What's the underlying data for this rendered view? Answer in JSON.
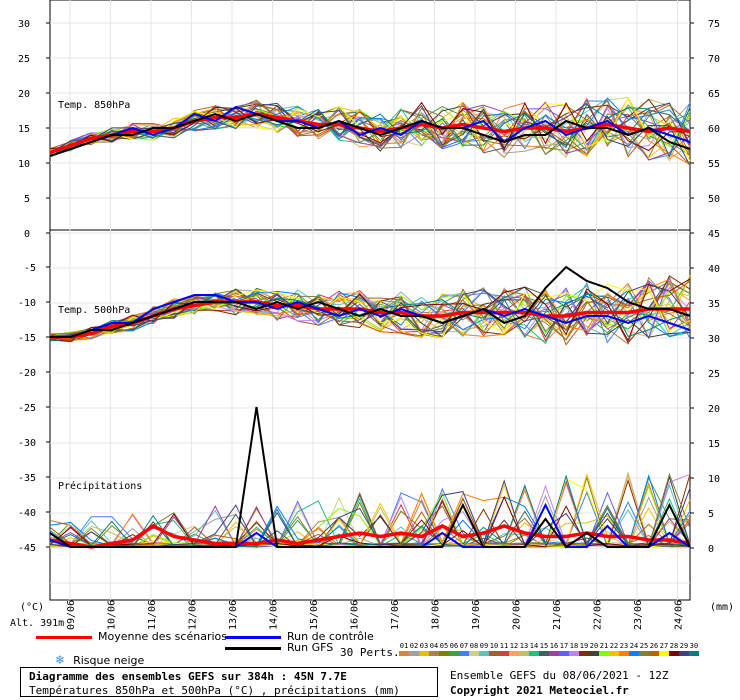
{
  "chart_data": {
    "type": "line",
    "title": "Diagramme des ensembles GEFS sur 384h : 45N 7.7E",
    "subtitle": "Températures 850hPa et 500hPa (°C) , précipitations (mm)",
    "x_dates": [
      "09/06",
      "10/06",
      "11/06",
      "12/06",
      "13/06",
      "14/06",
      "15/06",
      "16/06",
      "17/06",
      "18/06",
      "19/06",
      "20/06",
      "21/06",
      "22/06",
      "23/06",
      "24/06"
    ],
    "left_axis_unit": "(°C)",
    "right_axis_unit": "(mm)",
    "altitude_label": "Alt. 391m",
    "panels": [
      {
        "label": "Temp. 850hPa",
        "left_ticks": [
          "30",
          "25",
          "20",
          "15",
          "10",
          "5",
          "0"
        ],
        "right_ticks": [
          "75",
          "70",
          "65",
          "60",
          "55",
          "50"
        ],
        "ylim": [
          0,
          30
        ]
      },
      {
        "label": "Temp. 500hPa",
        "left_ticks": [
          "-5",
          "-10",
          "-15",
          "-20",
          "-25",
          "-30",
          "-35",
          "-40",
          "-45"
        ],
        "right_ticks": [
          "45",
          "40",
          "35",
          "30",
          "25",
          "20",
          "15",
          "10",
          "5",
          "0"
        ],
        "ylim": [
          -50,
          0
        ]
      },
      {
        "label": "Précipitations",
        "right_ticks": [
          "20",
          "15",
          "10",
          "5",
          "0"
        ],
        "ylim": [
          0,
          20
        ]
      }
    ],
    "series": [
      {
        "name": "Moyenne des scénarios",
        "color": "#ff0000",
        "t850": [
          11.5,
          12.5,
          13.5,
          14,
          14.5,
          14.5,
          15,
          16,
          16.5,
          16.5,
          17,
          16.5,
          16,
          15.5,
          15.5,
          15,
          14.5,
          15,
          15.5,
          15,
          15.5,
          15,
          14.5,
          15,
          15,
          14.5,
          15,
          15.5,
          15,
          14.5,
          15,
          14.5
        ],
        "t500": [
          -15,
          -15,
          -14.5,
          -13.5,
          -13,
          -12,
          -11,
          -10.5,
          -10,
          -10,
          -10,
          -10.5,
          -10.5,
          -11,
          -11,
          -11,
          -11.5,
          -11.5,
          -12,
          -12,
          -11.5,
          -11.5,
          -11.5,
          -11.5,
          -12,
          -12,
          -11.5,
          -11.5,
          -11.5,
          -11,
          -11,
          -11
        ],
        "precip": [
          1,
          0.5,
          0,
          0.5,
          1,
          3,
          1.5,
          1,
          0.5,
          0.5,
          0.5,
          1,
          0.5,
          1,
          1.5,
          2,
          1.5,
          2,
          1.5,
          3,
          1.5,
          2,
          3,
          2,
          1.5,
          1.5,
          2,
          1.5,
          1.5,
          1,
          1,
          0.5
        ]
      },
      {
        "name": "Run de contrôle",
        "color": "#0000ff",
        "t850": [
          11,
          12,
          13,
          14,
          15,
          14,
          15,
          17,
          16,
          18,
          17,
          16,
          16,
          15,
          16,
          14,
          15,
          14,
          16,
          15,
          15,
          16,
          13,
          15,
          16,
          14,
          15,
          16,
          14,
          15,
          14,
          13
        ],
        "t500": [
          -15,
          -15,
          -14,
          -13,
          -13,
          -11,
          -10,
          -9,
          -9,
          -10,
          -10,
          -11,
          -10,
          -11,
          -12,
          -11,
          -12,
          -11,
          -12,
          -13,
          -12,
          -11,
          -12,
          -11,
          -12,
          -13,
          -12,
          -12,
          -13,
          -12,
          -13,
          -14
        ],
        "precip": [
          1,
          0,
          0,
          0,
          0,
          0,
          0,
          0,
          0,
          0,
          2,
          0,
          0,
          0,
          0,
          0,
          0,
          0,
          0,
          2,
          0,
          0,
          0,
          0,
          6,
          0,
          0,
          3,
          0,
          0,
          2,
          0
        ]
      },
      {
        "name": "Run GFS",
        "color": "#000000",
        "t850": [
          11,
          12,
          13,
          14,
          14,
          15,
          15,
          16,
          17,
          16,
          17,
          16,
          15,
          15,
          16,
          15,
          14,
          15,
          16,
          15,
          15,
          14,
          13,
          14,
          14,
          16,
          15,
          15,
          14,
          15,
          13,
          12
        ],
        "t500": [
          -15,
          -15,
          -14,
          -14,
          -13,
          -12,
          -11,
          -10,
          -10,
          -10,
          -11,
          -10,
          -11,
          -10,
          -11,
          -12,
          -11,
          -12,
          -12,
          -13,
          -12,
          -11,
          -13,
          -12,
          -8,
          -5,
          -7,
          -8,
          -10,
          -11,
          -11,
          -12
        ],
        "precip": [
          2,
          0,
          0,
          0,
          0,
          0,
          0,
          0,
          0,
          0,
          20,
          0,
          0,
          0,
          0,
          0,
          0,
          0,
          0,
          0,
          6,
          0,
          0,
          0,
          4,
          0,
          2,
          0,
          0,
          0,
          6,
          0
        ]
      }
    ],
    "legend": {
      "mean": "Moyenne des scénarios",
      "control": "Run de contrôle",
      "gfs": "Run GFS",
      "snow": "Risque neige",
      "perts_label": "30 Perts."
    },
    "perturbations": [
      {
        "id": "01",
        "color": "#e08040"
      },
      {
        "id": "02",
        "color": "#a0a0a0"
      },
      {
        "id": "03",
        "color": "#e0c000"
      },
      {
        "id": "04",
        "color": "#b08050"
      },
      {
        "id": "05",
        "color": "#808000"
      },
      {
        "id": "06",
        "color": "#40a040"
      },
      {
        "id": "07",
        "color": "#4080ff"
      },
      {
        "id": "08",
        "color": "#d0d080"
      },
      {
        "id": "09",
        "color": "#60c0c0"
      },
      {
        "id": "10",
        "color": "#a06030"
      },
      {
        "id": "11",
        "color": "#d04040"
      },
      {
        "id": "12",
        "color": "#ffa060"
      },
      {
        "id": "13",
        "color": "#c0c060"
      },
      {
        "id": "14",
        "color": "#20c080"
      },
      {
        "id": "15",
        "color": "#406060"
      },
      {
        "id": "16",
        "color": "#a040a0"
      },
      {
        "id": "17",
        "color": "#6060ff"
      },
      {
        "id": "18",
        "color": "#c080ff"
      },
      {
        "id": "19",
        "color": "#803000"
      },
      {
        "id": "20",
        "color": "#404040"
      },
      {
        "id": "21",
        "color": "#80ff00"
      },
      {
        "id": "22",
        "color": "#ffc000"
      },
      {
        "id": "23",
        "color": "#ff8000"
      },
      {
        "id": "24",
        "color": "#0080ff"
      },
      {
        "id": "25",
        "color": "#808040"
      },
      {
        "id": "26",
        "color": "#c06000"
      },
      {
        "id": "27",
        "color": "#ffff00"
      },
      {
        "id": "28",
        "color": "#800000"
      },
      {
        "id": "29",
        "color": "#404080"
      },
      {
        "id": "30",
        "color": "#008080"
      }
    ],
    "footer_left_title": "Diagramme des ensembles GEFS sur 384h : 45N 7.7E",
    "footer_left_sub": "Températures 850hPa et 500hPa (°C) , précipitations (mm)",
    "footer_right_run": "Ensemble GEFS du 08/06/2021 - 12Z",
    "footer_right_copy": "Copyright 2021 Meteociel.fr"
  }
}
